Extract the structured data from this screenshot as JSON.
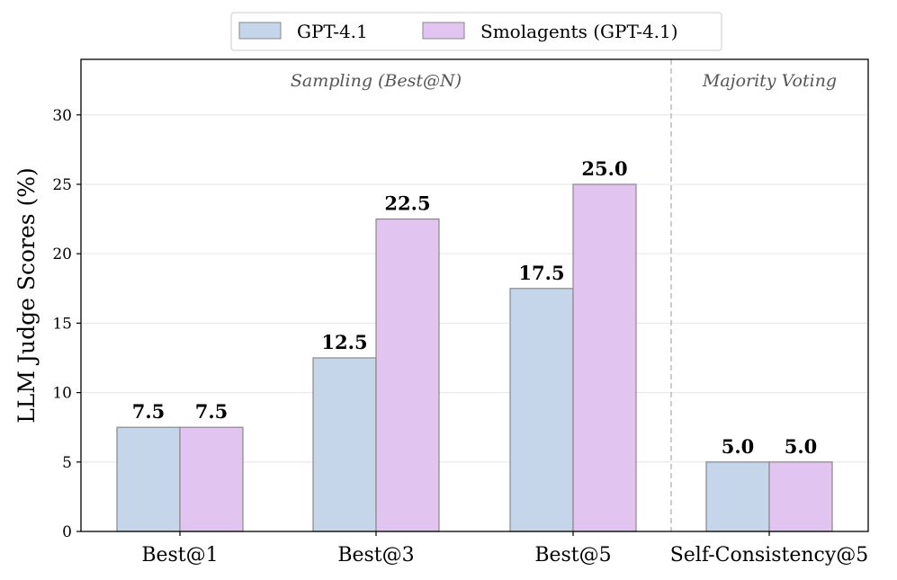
{
  "chart_data": {
    "type": "bar",
    "categories": [
      "Best@1",
      "Best@3",
      "Best@5",
      "Self-Consistency@5"
    ],
    "series": [
      {
        "name": "GPT-4.1",
        "values": [
          7.5,
          12.5,
          17.5,
          5.0
        ],
        "color": "#c5d6ea"
      },
      {
        "name": "Smolagents (GPT-4.1)",
        "values": [
          7.5,
          22.5,
          25.0,
          5.0
        ],
        "color": "#e1c4ef"
      }
    ],
    "data_labels": {
      "GPT-4.1": [
        "7.5",
        "12.5",
        "17.5",
        "5.0"
      ],
      "Smolagents (GPT-4.1)": [
        "7.5",
        "22.5",
        "25.0",
        "5.0"
      ]
    },
    "title": "",
    "xlabel": "",
    "ylabel": "LLM Judge Scores (%)",
    "ylim": [
      0,
      34
    ],
    "yticks": [
      "0",
      "5",
      "10",
      "15",
      "20",
      "25",
      "30"
    ],
    "grid": "horizontal",
    "legend_position": "top-center",
    "regions": [
      {
        "label": "Sampling (Best@N)",
        "categories": [
          "Best@1",
          "Best@3",
          "Best@5"
        ]
      },
      {
        "label": "Majority Voting",
        "categories": [
          "Self-Consistency@5"
        ]
      }
    ],
    "colors": {
      "bar_edge": "#888888",
      "grid": "#e6e6e6",
      "divider": "#b0b0b0",
      "region_text": "#555555"
    }
  }
}
